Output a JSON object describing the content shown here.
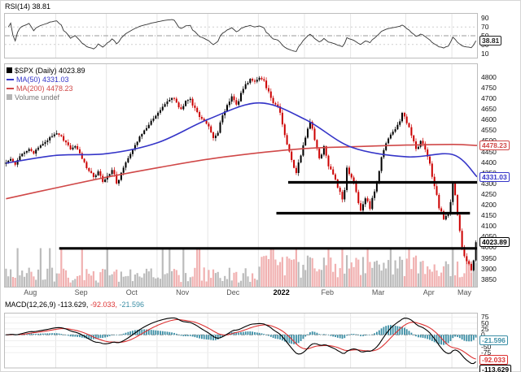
{
  "ui": {
    "rsi_label": "RSI(14)",
    "rsi_value": "38.81",
    "spx_label": "$SPX (Daily)",
    "spx_value": "4023.89",
    "ma50_label": "MA(50)",
    "ma50_value": "4331.03",
    "ma200_label": "MA(200)",
    "ma200_value": "4478.23",
    "volume_label": "Volume undef",
    "macd_label": "MACD(12,26,9)",
    "macd_value": "-113.629",
    "macd_signal_value": "-92.033",
    "macd_hist_value": "-21.596"
  },
  "colors": {
    "spx": "#000000",
    "candle_up": "#000000",
    "candle_down": "#cc0000",
    "vol_up": "#b5b5b5",
    "vol_down": "#efa8a8",
    "ma50": "#3535c8",
    "ma200": "#d04848",
    "signal": "#dd3333",
    "macd_line": "#000000",
    "macd_hist": "#3b8ea5",
    "support": "#000000",
    "volume_legend": "#777777"
  },
  "chart_data": [
    {
      "type": "line",
      "title": "RSI(14)",
      "last": 38.81,
      "period": 14,
      "ylim": [
        0,
        100
      ],
      "yticks": [
        90,
        70,
        50,
        30,
        10
      ],
      "guides": [
        70,
        50,
        30
      ]
    },
    {
      "type": "candlestick",
      "title": "$SPX (Daily)",
      "last": 4023.89,
      "ylim": [
        3815,
        4860
      ],
      "y_ticks": [
        4800,
        4750,
        4700,
        4650,
        4600,
        4550,
        4500,
        4450,
        4400,
        4350,
        4300,
        4250,
        4200,
        4150,
        4100,
        4050,
        4000,
        3950,
        3900,
        3850
      ],
      "months": [
        {
          "label": "Aug",
          "i": 0
        },
        {
          "label": "Sep",
          "i": 11
        },
        {
          "label": "Oct",
          "i": 22
        },
        {
          "label": "Nov",
          "i": 33
        },
        {
          "label": "Dec",
          "i": 44
        },
        {
          "label": "2022",
          "i": 55
        },
        {
          "label": "Feb",
          "i": 65
        },
        {
          "label": "Mar",
          "i": 75
        },
        {
          "label": "Apr",
          "i": 87
        },
        {
          "label": "May",
          "i": 97
        }
      ],
      "closes": [
        4398,
        4415,
        4388,
        4428,
        4445,
        4462,
        4440,
        4468,
        4486,
        4502,
        4522,
        4535,
        4522,
        4493,
        4460,
        4475,
        4442,
        4400,
        4358,
        4330,
        4357,
        4307,
        4335,
        4363,
        4300,
        4350,
        4399,
        4438,
        4480,
        4520,
        4549,
        4575,
        4605,
        4632,
        4660,
        4685,
        4701,
        4680,
        4649,
        4688,
        4697,
        4655,
        4612,
        4594,
        4568,
        4513,
        4538,
        4620,
        4668,
        4709,
        4670,
        4725,
        4766,
        4791,
        4778,
        4796,
        4783,
        4732,
        4677,
        4662,
        4577,
        4483,
        4410,
        4349,
        4431,
        4515,
        4589,
        4504,
        4418,
        4475,
        4380,
        4342,
        4280,
        4225,
        4374,
        4328,
        4260,
        4173,
        4230,
        4180,
        4262,
        4358,
        4456,
        4511,
        4543,
        4575,
        4631,
        4583,
        4525,
        4462,
        4500,
        4459,
        4393,
        4287,
        4183,
        4131,
        4155,
        4300,
        4152,
        4001,
        3935,
        3892,
        4023.89
      ],
      "ma50": {
        "period": 50,
        "last": 4331.03,
        "values": [
          4395,
          4432,
          4440,
          4492,
          4602,
          4678,
          4600,
          4470,
          4425,
          4435,
          4331.03
        ]
      },
      "ma200": {
        "period": 200,
        "last": 4478.23,
        "values": [
          4228,
          4280,
          4330,
          4374,
          4414,
          4444,
          4464,
          4472,
          4480,
          4483,
          4478.23
        ]
      },
      "support_lines": [
        {
          "price": 4305,
          "from": 0.6,
          "to": 1.0
        },
        {
          "price": 4160,
          "from": 0.575,
          "to": 0.985
        },
        {
          "price": 3995,
          "from": 0.115,
          "to": 1.0
        }
      ],
      "volume": "undef"
    },
    {
      "type": "macd",
      "title": "MACD(12,26,9)",
      "macd": -113.629,
      "signal": -92.033,
      "hist": -21.596,
      "ylim": [
        -140,
        90
      ],
      "yticks": [
        75,
        50,
        25,
        0,
        -25,
        -50,
        -75
      ]
    }
  ]
}
